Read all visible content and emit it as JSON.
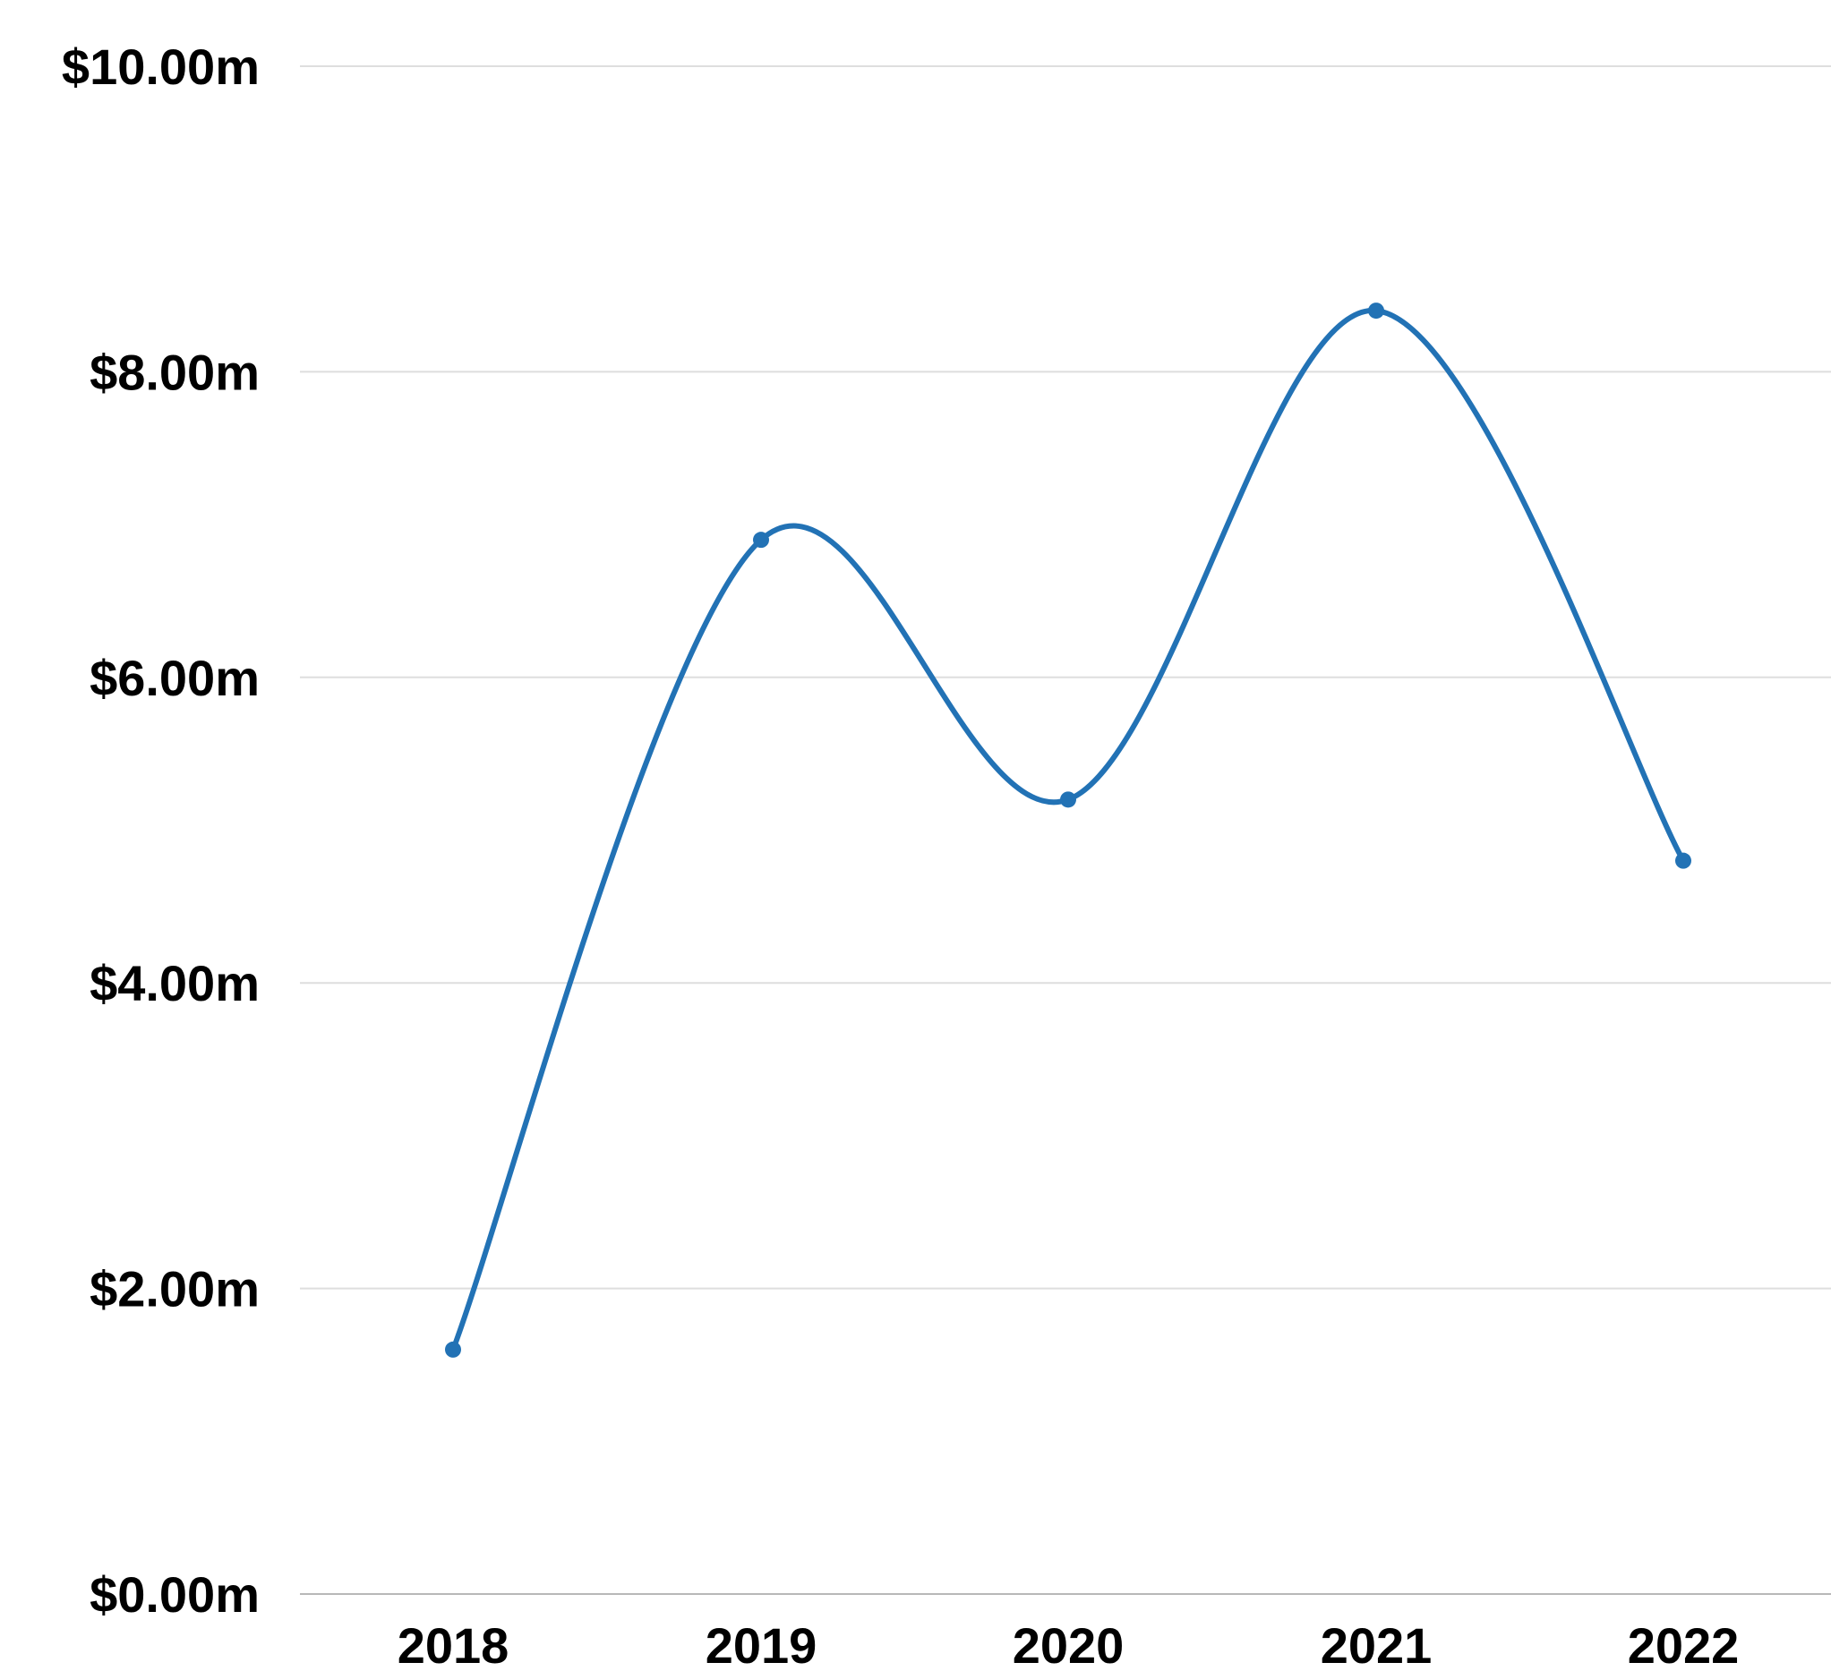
{
  "chart_data": {
    "type": "line",
    "categories": [
      "2018",
      "2019",
      "2020",
      "2021",
      "2022"
    ],
    "series": [
      {
        "values": [
          1.6,
          6.9,
          5.2,
          8.4,
          4.8
        ]
      }
    ],
    "y_ticks": [
      0,
      2,
      4,
      6,
      8,
      10
    ],
    "y_tick_labels": [
      "$0.00m",
      "$2.00m",
      "$4.00m",
      "$6.00m",
      "$8.00m",
      "$10.00m"
    ],
    "ylim": [
      0,
      10
    ],
    "grid": true,
    "smooth": true,
    "colors": {
      "series": "#2272b5",
      "grid": "#dedede",
      "text": "#000000"
    }
  }
}
